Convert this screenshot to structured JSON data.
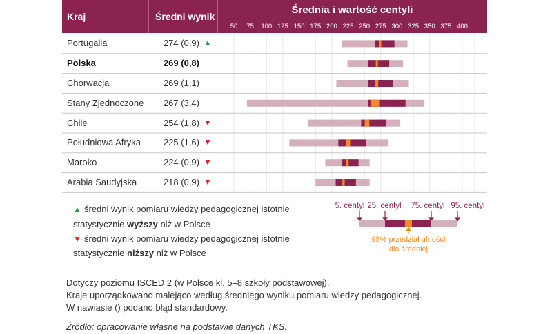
{
  "header": {
    "country": "Kraj",
    "score": "Średni wynik",
    "chart": "Średnia i wartość centyli"
  },
  "colors": {
    "header": "#8b2351",
    "outer": "#d4b0bd",
    "inner": "#8b2351",
    "ci": "#f08a24",
    "up": "#22a04a",
    "down": "#e02020"
  },
  "chart_data": {
    "type": "bar",
    "title": "Średnia i wartość centyli",
    "xlim": [
      50,
      400
    ],
    "xticks": [
      50,
      75,
      100,
      125,
      150,
      175,
      200,
      225,
      250,
      275,
      300,
      325,
      350,
      375,
      400
    ],
    "grid": true,
    "categories": [
      "Portugalia",
      "Polska",
      "Chorwacja",
      "Stany Zjednoczone",
      "Chile",
      "Południowa Afryka",
      "Maroko",
      "Arabia Saudyjska"
    ],
    "rows": [
      {
        "country": "Portugalia",
        "score": "274 (0,9)",
        "mean": 274,
        "se": 0.9,
        "p5": 216,
        "p25": 266,
        "p75": 296,
        "p95": 316,
        "sig": "up",
        "bold": false
      },
      {
        "country": "Polska",
        "score": "269 (0,8)",
        "mean": 269,
        "se": 0.8,
        "p5": 224,
        "p25": 256,
        "p75": 288,
        "p95": 309,
        "sig": "",
        "bold": true
      },
      {
        "country": "Chorwacja",
        "score": "269 (1,1)",
        "mean": 269,
        "se": 1.1,
        "p5": 207,
        "p25": 256,
        "p75": 294,
        "p95": 318,
        "sig": "",
        "bold": false
      },
      {
        "country": "Stany Zjednoczone",
        "score": "267 (3,4)",
        "mean": 267,
        "se": 3.4,
        "p5": 70,
        "p25": 256,
        "p75": 313,
        "p95": 342,
        "sig": "",
        "bold": false
      },
      {
        "country": "Chile",
        "score": "254 (1,8)",
        "mean": 254,
        "se": 1.8,
        "p5": 163,
        "p25": 245,
        "p75": 283,
        "p95": 305,
        "sig": "down",
        "bold": false
      },
      {
        "country": "Południowa Afryka",
        "score": "225 (1,6)",
        "mean": 225,
        "se": 1.6,
        "p5": 135,
        "p25": 210,
        "p75": 252,
        "p95": 287,
        "sig": "down",
        "bold": false
      },
      {
        "country": "Maroko",
        "score": "224 (0,9)",
        "mean": 224,
        "se": 0.9,
        "p5": 190,
        "p25": 215,
        "p75": 241,
        "p95": 258,
        "sig": "down",
        "bold": false
      },
      {
        "country": "Arabia Saudyjska",
        "score": "218 (0,9)",
        "mean": 218,
        "se": 0.9,
        "p5": 175,
        "p25": 206,
        "p75": 237,
        "p95": 258,
        "sig": "down",
        "bold": false
      }
    ]
  },
  "legend": {
    "up_symbol": "▲",
    "down_symbol": "▼",
    "up_line1": "średni wynik pomiaru wiedzy pedagogicznej istotnie",
    "up_line2_pre": "statystycznie ",
    "up_line2_bold": "wyższy",
    "up_line2_post": " niż w Polsce",
    "down_line1": "średni wynik pomiaru wiedzy pedagogicznej istotnie",
    "down_line2_pre": "statystycznie ",
    "down_line2_bold": "niższy",
    "down_line2_post": " niż w Polsce",
    "p5": "5. centyl",
    "p25": "25. centyl",
    "p75": "75. centyl",
    "p95": "95. centyl",
    "ci_line1": "95% przedział ufności",
    "ci_line2": "dla średniej"
  },
  "notes": [
    "Dotyczy poziomu ISCED 2 (w Polsce kl. 5–8 szkoły podstawowej).",
    "Kraje uporządkowano malejąco według średniego wyniku pomiaru wiedzy pedagogicznej.",
    "W nawiasie () podano błąd standardowy."
  ],
  "source": "Źródło: opracowanie własne na podstawie danych TKS."
}
